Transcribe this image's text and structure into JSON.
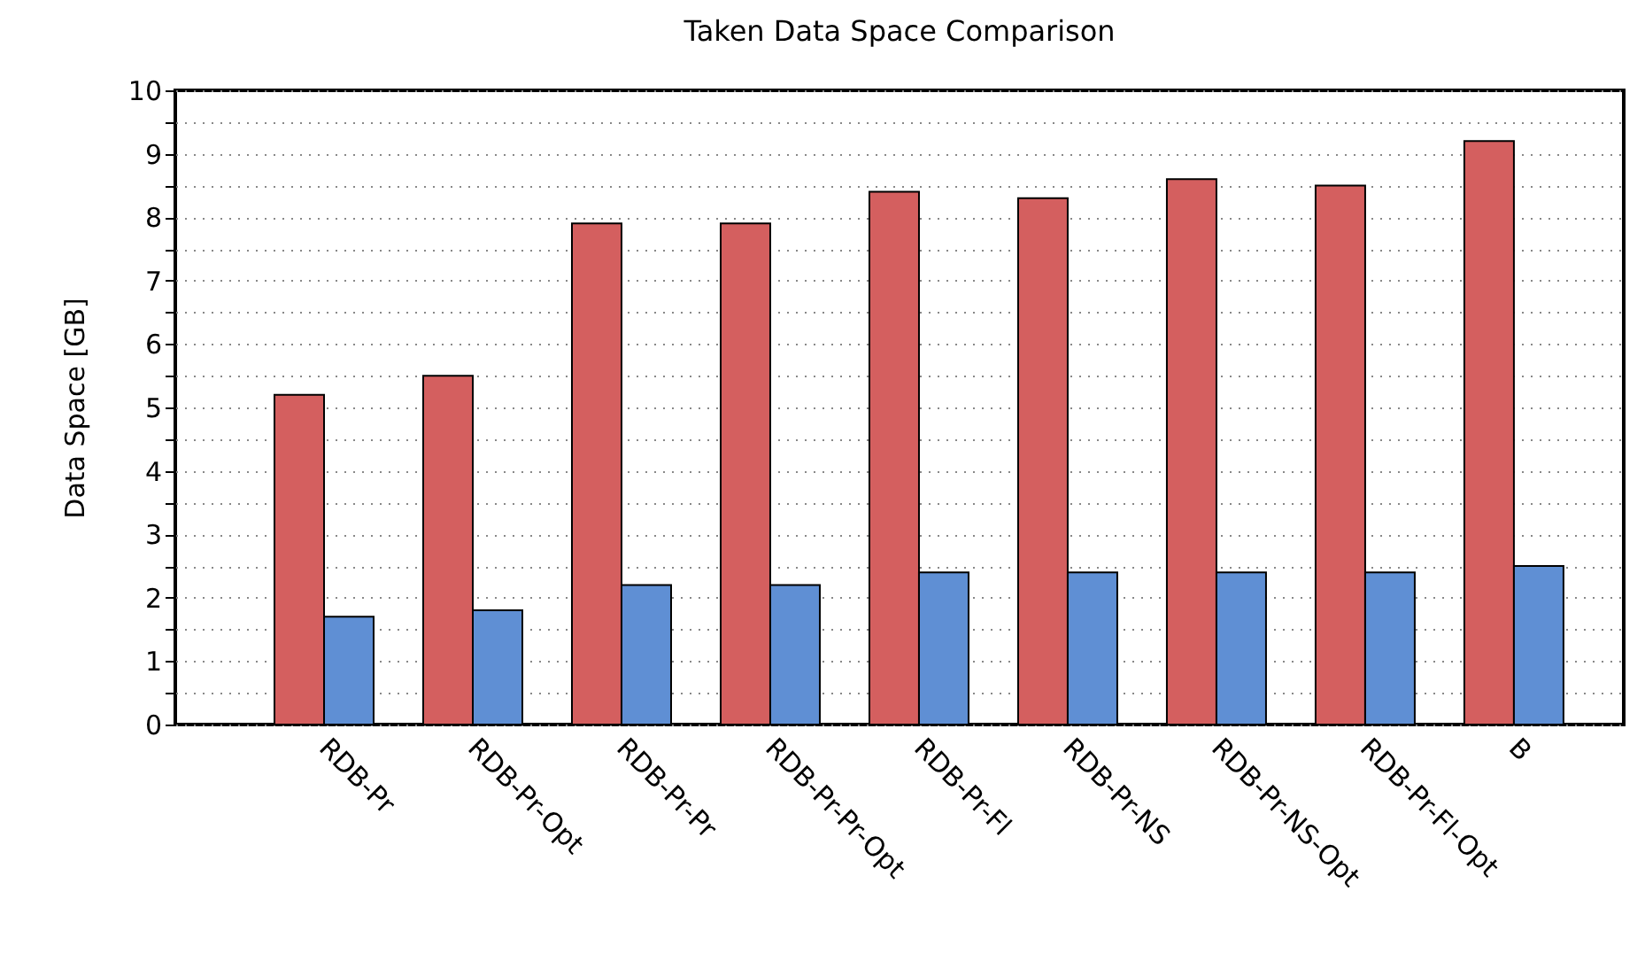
{
  "chart_data": {
    "type": "bar",
    "title": "Taken Data Space Comparison",
    "ylabel": "Data Space [GB]",
    "categories": [
      "RDB-Pr",
      "RDB-Pr-Opt",
      "RDB-Pr-Pr",
      "RDB-Pr-Pr-Opt",
      "RDB-Pr-Fl",
      "RDB-Pr-NS",
      "RDB-Pr-NS-Opt",
      "RDB-Pr-Fl-Opt",
      "B"
    ],
    "series": [
      {
        "color": "#d45f5f",
        "values": [
          5.2,
          5.5,
          7.9,
          7.9,
          8.4,
          8.3,
          8.6,
          8.5,
          9.2
        ]
      },
      {
        "color": "#5f8fd4",
        "values": [
          1.7,
          1.8,
          2.2,
          2.2,
          2.4,
          2.4,
          2.4,
          2.4,
          2.5
        ]
      }
    ],
    "ylim": [
      0,
      10
    ],
    "yticks": [
      0,
      {
        "value": 0.5,
        "label": null
      },
      1,
      {
        "value": 1.5,
        "label": null
      },
      2,
      {
        "value": 2.5,
        "label": null
      },
      3,
      {
        "value": 3.5,
        "label": null
      },
      4,
      {
        "value": 4.5,
        "label": null
      },
      5,
      {
        "value": 5.5,
        "label": null
      },
      6,
      {
        "value": 6.5,
        "label": null
      },
      7,
      {
        "value": 7.5,
        "label": null
      },
      8,
      {
        "value": 8.5,
        "label": null
      },
      9,
      {
        "value": 9.5,
        "label": null
      },
      10
    ],
    "grid": true
  }
}
